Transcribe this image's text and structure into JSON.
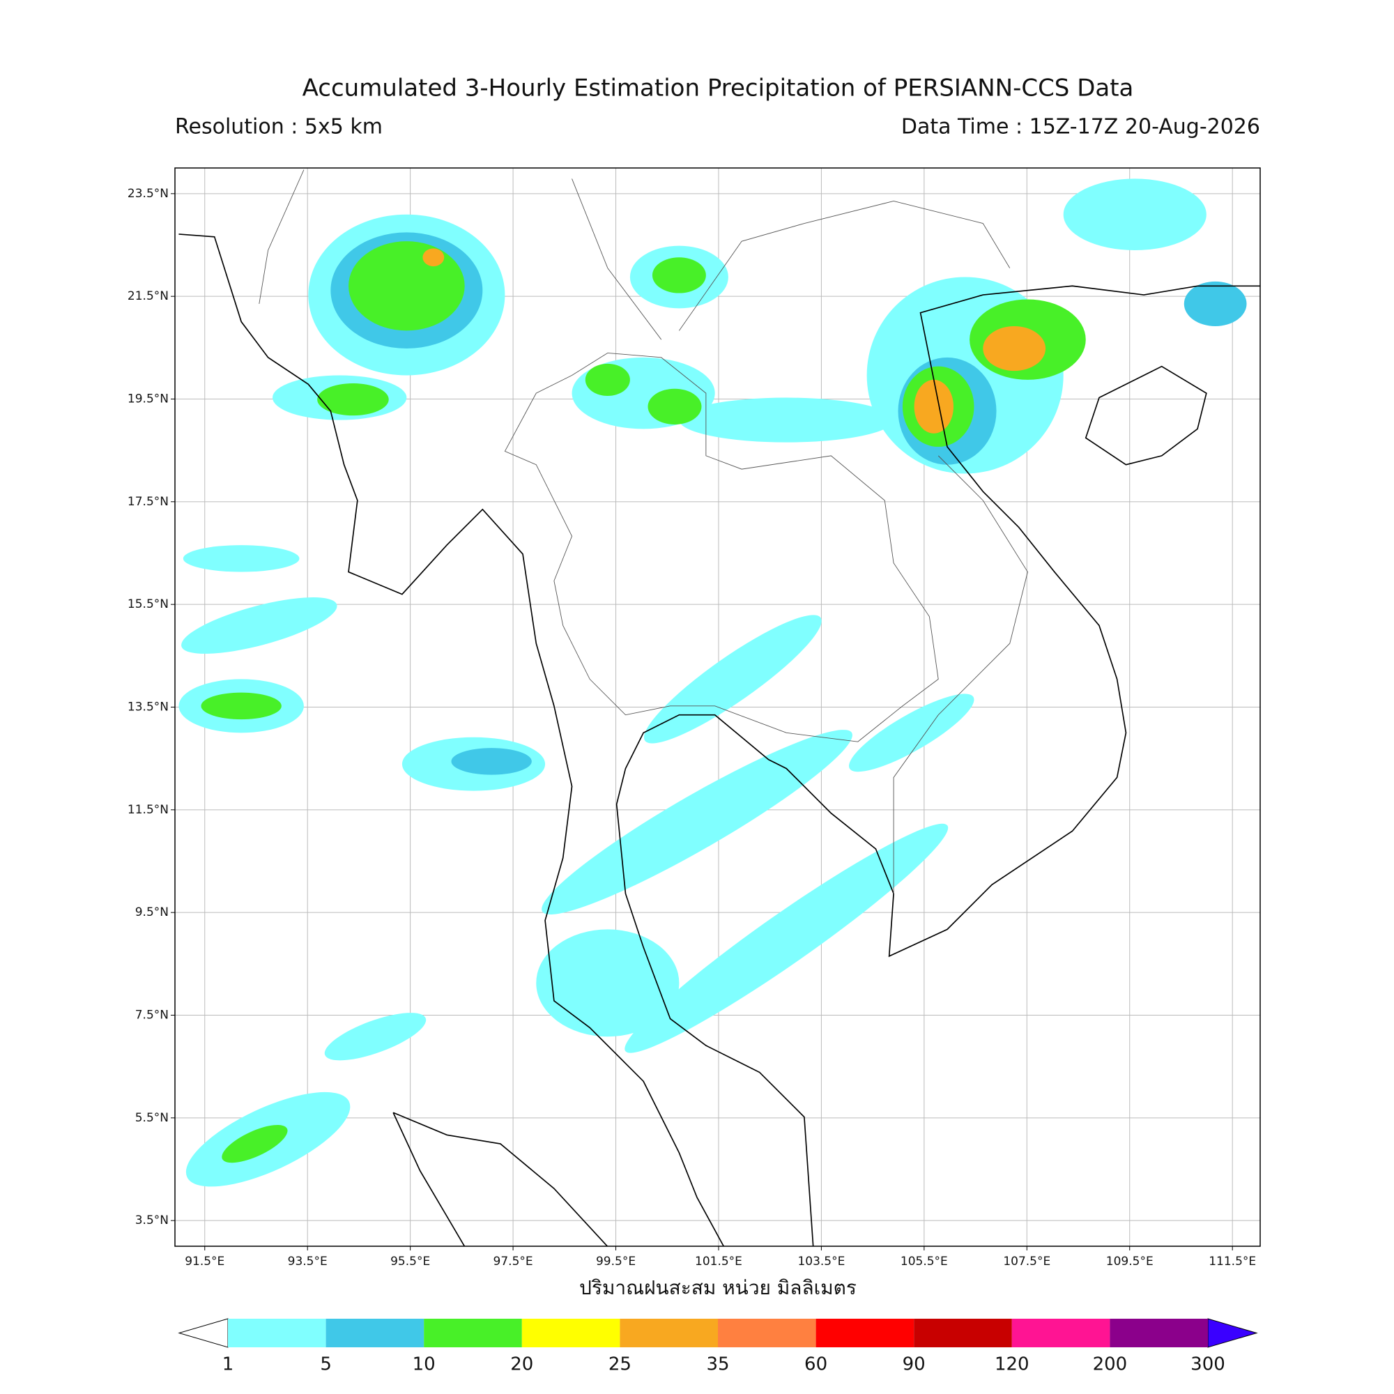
{
  "header": {
    "title": "Accumulated 3-Hourly Estimation Precipitation of PERSIANN-CCS Data",
    "left_subtitle": "Resolution : 5x5 km",
    "right_subtitle": "Data Time : 15Z-17Z 20-Aug-2026"
  },
  "map": {
    "xlim": [
      90.92,
      112.04
    ],
    "ylim": [
      3.0,
      24.0
    ],
    "grid": true,
    "xticks": [
      {
        "value": 91.5,
        "label": "91.5°E"
      },
      {
        "value": 93.5,
        "label": "93.5°E"
      },
      {
        "value": 95.5,
        "label": "95.5°E"
      },
      {
        "value": 97.5,
        "label": "97.5°E"
      },
      {
        "value": 99.5,
        "label": "99.5°E"
      },
      {
        "value": 101.5,
        "label": "101.5°E"
      },
      {
        "value": 103.5,
        "label": "103.5°E"
      },
      {
        "value": 105.5,
        "label": "105.5°E"
      },
      {
        "value": 107.5,
        "label": "107.5°E"
      },
      {
        "value": 109.5,
        "label": "109.5°E"
      },
      {
        "value": 111.5,
        "label": "111.5°E"
      }
    ],
    "yticks": [
      {
        "value": 23.5,
        "label": "23.5°N"
      },
      {
        "value": 21.5,
        "label": "21.5°N"
      },
      {
        "value": 19.5,
        "label": "19.5°N"
      },
      {
        "value": 17.5,
        "label": "17.5°N"
      },
      {
        "value": 15.5,
        "label": "15.5°N"
      },
      {
        "value": 13.5,
        "label": "13.5°N"
      },
      {
        "value": 11.5,
        "label": "11.5°N"
      },
      {
        "value": 9.5,
        "label": "9.5°N"
      },
      {
        "value": 7.5,
        "label": "7.5°N"
      },
      {
        "value": 5.5,
        "label": "5.5°N"
      },
      {
        "value": 3.5,
        "label": "3.5°N"
      }
    ],
    "xlabel": "ปริมาณฝนสะสม หน่วย มิลลิเมตร"
  },
  "colorbar": {
    "levels": [
      1,
      5,
      10,
      20,
      25,
      35,
      60,
      90,
      120,
      200,
      300
    ],
    "colors": [
      "#80ffff",
      "#40c8e8",
      "#48f028",
      "#ffff00",
      "#f8a820",
      "#ff8040",
      "#ff0000",
      "#c80000",
      "#ff1493",
      "#8b008b"
    ],
    "under_color": "#ffffff",
    "over_color": "#3a00ff"
  }
}
